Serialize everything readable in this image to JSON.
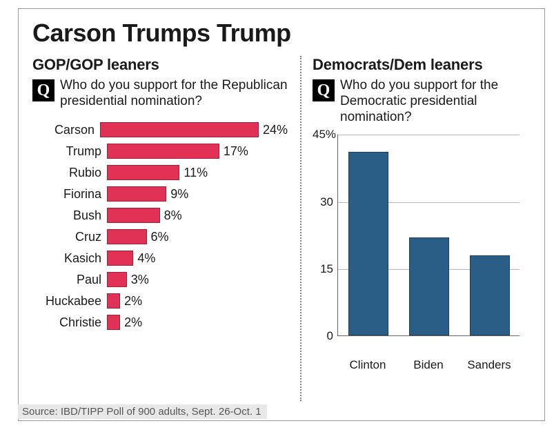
{
  "title": "Carson Trumps Trump",
  "source": "Source: IBD/TIPP Poll of 900 adults, Sept. 26-Oct. 1",
  "left": {
    "subhead": "GOP/GOP leaners",
    "question": "Who do you support for the Republican presidential nomination?",
    "chart": {
      "type": "bar-horizontal",
      "max": 24,
      "bar_color": "#e13256",
      "bar_border": "#a01d3c",
      "label_fontsize": 18,
      "value_suffix": "%",
      "items": [
        {
          "label": "Carson",
          "value": 24
        },
        {
          "label": "Trump",
          "value": 17
        },
        {
          "label": "Rubio",
          "value": 11
        },
        {
          "label": "Fiorina",
          "value": 9
        },
        {
          "label": "Bush",
          "value": 8
        },
        {
          "label": "Cruz",
          "value": 6
        },
        {
          "label": "Kasich",
          "value": 4
        },
        {
          "label": "Paul",
          "value": 3
        },
        {
          "label": "Huckabee",
          "value": 2
        },
        {
          "label": "Christie",
          "value": 2
        }
      ]
    }
  },
  "right": {
    "subhead": "Democrats/Dem leaners",
    "question": "Who do you support for the Democratic presidential nomination?",
    "chart": {
      "type": "bar-vertical",
      "ylim": [
        0,
        45
      ],
      "yticks": [
        0,
        15,
        30,
        45
      ],
      "ytick_suffix_on_top": "%",
      "bar_color": "#2b5e86",
      "bar_border": "#1c3f5a",
      "grid_color": "#bbbbbb",
      "axis_color": "#666666",
      "bar_width_pct": 22,
      "label_fontsize": 17,
      "items": [
        {
          "label": "Clinton",
          "value": 41
        },
        {
          "label": "Biden",
          "value": 22
        },
        {
          "label": "Sanders",
          "value": 18
        }
      ]
    }
  }
}
